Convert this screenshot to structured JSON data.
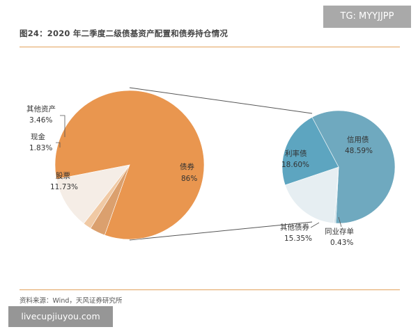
{
  "header": {
    "title": "图24：2020 年二季度二级债基资产配置和债券持仓情况",
    "watermark": "TG: MYYJJPP"
  },
  "footer": {
    "source": "资料来源：Wind，天风证券研究所",
    "watermark": "livecupjiuyou.com"
  },
  "colors": {
    "rule": "#e3a25c",
    "bonds": "#e9964f",
    "other_assets": "#dba06e",
    "cash": "#f0c9a4",
    "stocks": "#f5ede6",
    "credit_bonds": "#6fa9bf",
    "rate_bonds": "#5da5c0",
    "other_bonds": "#e6eef2",
    "interbank_cd": "#cfe0e8"
  },
  "chart_data": [
    {
      "type": "pie",
      "title": "",
      "slices": [
        {
          "label": "债券",
          "value": 86,
          "display": "86%"
        },
        {
          "label": "其他资产",
          "value": 3.46,
          "display": "3.46%"
        },
        {
          "label": "现金",
          "value": 1.83,
          "display": "1.83%"
        },
        {
          "label": "股票",
          "value": 11.73,
          "display": "11.73%"
        }
      ]
    },
    {
      "type": "pie",
      "title": "",
      "slices": [
        {
          "label": "信用债",
          "value": 48.59,
          "display": "48.59%"
        },
        {
          "label": "同业存单",
          "value": 0.43,
          "display": "0.43%"
        },
        {
          "label": "其他债券",
          "value": 15.35,
          "display": "15.35%"
        },
        {
          "label": "利率债",
          "value": 18.6,
          "display": "18.60%"
        }
      ]
    }
  ]
}
